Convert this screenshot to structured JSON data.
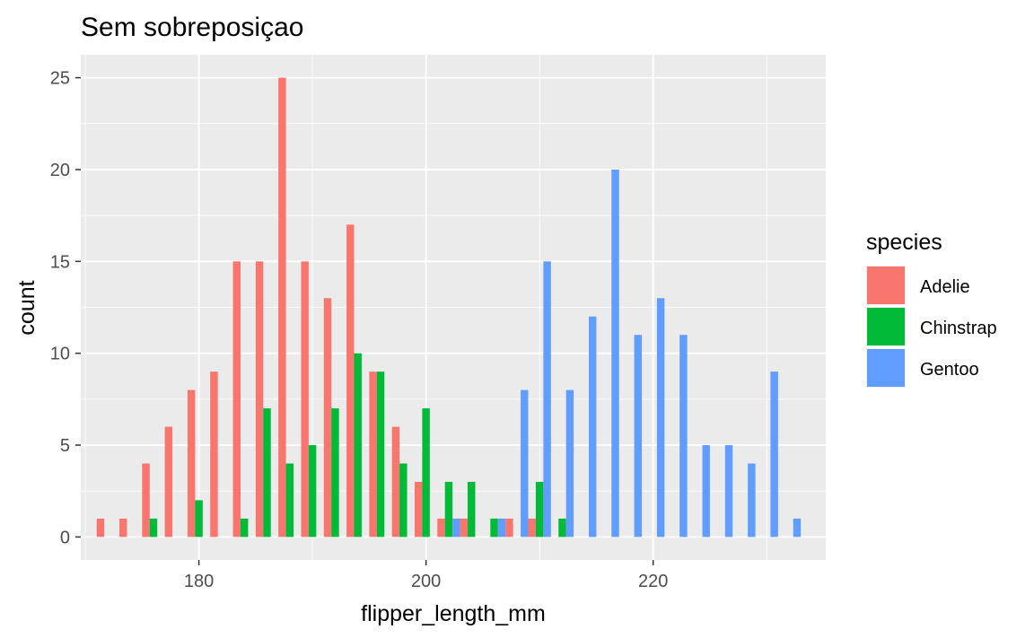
{
  "chart_data": {
    "type": "bar",
    "title": "Sem sobreposiçao",
    "xlabel": "flipper_length_mm",
    "ylabel": "count",
    "xlim": [
      169.6,
      235.2
    ],
    "ylim": [
      -1.25,
      26.25
    ],
    "x_ticks": [
      180,
      200,
      220
    ],
    "x_tick_labels": [
      "180",
      "200",
      "220"
    ],
    "y_ticks": [
      0,
      5,
      10,
      15,
      20,
      25
    ],
    "y_tick_labels": [
      "0",
      "5",
      "10",
      "15",
      "20",
      "25"
    ],
    "bin_width": 2,
    "grid": true,
    "legend": {
      "title": "species",
      "position": "right"
    },
    "series": [
      {
        "name": "Adelie",
        "color": "#F8766D",
        "x": [
          172,
          174,
          176,
          178,
          180,
          182,
          184,
          186,
          188,
          190,
          192,
          194,
          196,
          198,
          200,
          202,
          204,
          206,
          208,
          210
        ],
        "values": [
          1,
          1,
          4,
          6,
          8,
          9,
          15,
          15,
          25,
          15,
          13,
          17,
          9,
          6,
          3,
          1,
          1,
          0,
          1,
          1
        ]
      },
      {
        "name": "Chinstrap",
        "color": "#00BA38",
        "x": [
          176,
          178,
          180,
          182,
          184,
          186,
          188,
          190,
          192,
          194,
          196,
          198,
          200,
          202,
          204,
          206,
          208,
          210,
          212
        ],
        "values": [
          1,
          0,
          2,
          0,
          1,
          7,
          4,
          5,
          7,
          10,
          9,
          4,
          7,
          3,
          3,
          1,
          0,
          3,
          1
        ]
      },
      {
        "name": "Gentoo",
        "color": "#619CFF",
        "x": [
          202,
          204,
          206,
          208,
          210,
          212,
          214,
          216,
          218,
          220,
          222,
          224,
          226,
          228,
          230,
          232
        ],
        "values": [
          1,
          0,
          1,
          8,
          15,
          8,
          12,
          20,
          11,
          13,
          11,
          5,
          5,
          4,
          9,
          1
        ]
      }
    ]
  }
}
